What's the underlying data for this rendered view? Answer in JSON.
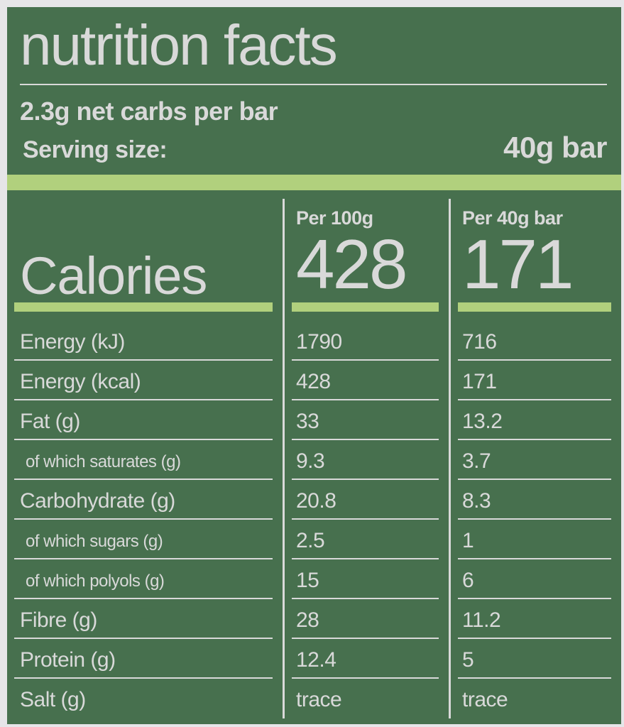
{
  "colors": {
    "background_green": "#47704E",
    "accent_green": "#B1D07D",
    "text_gray": "#D9D9D9",
    "frame_gray": "#E6E5E8"
  },
  "header": {
    "title": "nutrition facts",
    "subtitle": "2.3g net carbs per bar",
    "serving_label": "Serving size:",
    "serving_value": "40g bar"
  },
  "calories": {
    "label": "Calories",
    "col1_header": "Per 100g",
    "col2_header": "Per 40g bar",
    "per_100g": "428",
    "per_40g": "171"
  },
  "table": {
    "columns": [
      "",
      "Per 100g",
      "Per 40g bar"
    ],
    "rows": [
      {
        "label": "Energy (kJ)",
        "per_100g": "1790",
        "per_40g": "716",
        "sub": false
      },
      {
        "label": "Energy (kcal)",
        "per_100g": "428",
        "per_40g": "171",
        "sub": false
      },
      {
        "label": "Fat (g)",
        "per_100g": "33",
        "per_40g": "13.2",
        "sub": false
      },
      {
        "label": "of which saturates (g)",
        "per_100g": "9.3",
        "per_40g": "3.7",
        "sub": true
      },
      {
        "label": "Carbohydrate (g)",
        "per_100g": "20.8",
        "per_40g": "8.3",
        "sub": false
      },
      {
        "label": "of which sugars (g)",
        "per_100g": "2.5",
        "per_40g": "1",
        "sub": true
      },
      {
        "label": "of which polyols (g)",
        "per_100g": "15",
        "per_40g": "6",
        "sub": true
      },
      {
        "label": "Fibre (g)",
        "per_100g": "28",
        "per_40g": "11.2",
        "sub": false
      },
      {
        "label": "Protein (g)",
        "per_100g": "12.4",
        "per_40g": "5",
        "sub": false
      },
      {
        "label": "Salt (g)",
        "per_100g": "trace",
        "per_40g": "trace",
        "sub": false
      }
    ]
  }
}
